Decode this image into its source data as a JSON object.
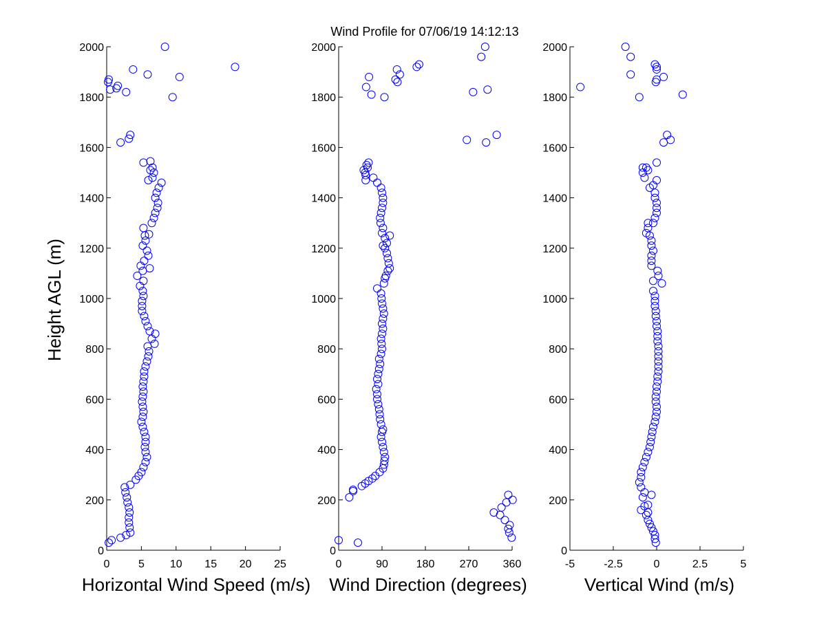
{
  "title": "Wind Profile for  07/06/19 14:12:13",
  "ylabel": "Height AGL (m)",
  "colors": {
    "marker": "#0000ff",
    "axis": "#000000",
    "background": "#ffffff"
  },
  "chart_data": [
    {
      "type": "scatter",
      "xlabel": "Horizontal Wind Speed (m/s)",
      "ylabel": "Height AGL (m)",
      "xlim": [
        0,
        25
      ],
      "ylim": [
        0,
        2000
      ],
      "xticks": [
        0,
        5,
        10,
        15,
        20,
        25
      ],
      "xtick_labels": [
        "0",
        "5",
        "10",
        "15",
        "20",
        "25"
      ],
      "yticks": [
        0,
        200,
        400,
        600,
        800,
        1000,
        1200,
        1400,
        1600,
        1800,
        2000
      ],
      "ytick_labels": [
        "0",
        "200",
        "400",
        "600",
        "800",
        "1000",
        "1200",
        "1400",
        "1600",
        "1800",
        "2000"
      ],
      "grid": false,
      "marker": "open-circle",
      "points": [
        [
          0.3,
          30
        ],
        [
          0.7,
          40
        ],
        [
          2.0,
          50
        ],
        [
          2.8,
          60
        ],
        [
          3.4,
          70
        ],
        [
          3.3,
          90
        ],
        [
          3.2,
          110
        ],
        [
          3.2,
          130
        ],
        [
          3.3,
          150
        ],
        [
          3.2,
          170
        ],
        [
          3.0,
          190
        ],
        [
          2.9,
          210
        ],
        [
          2.7,
          230
        ],
        [
          3.4,
          260
        ],
        [
          2.6,
          250
        ],
        [
          4.2,
          280
        ],
        [
          4.6,
          295
        ],
        [
          5.0,
          310
        ],
        [
          5.3,
          330
        ],
        [
          5.6,
          350
        ],
        [
          5.8,
          370
        ],
        [
          5.6,
          390
        ],
        [
          5.5,
          410
        ],
        [
          5.6,
          430
        ],
        [
          5.6,
          450
        ],
        [
          5.4,
          470
        ],
        [
          5.2,
          490
        ],
        [
          5.0,
          510
        ],
        [
          5.2,
          530
        ],
        [
          5.3,
          550
        ],
        [
          5.2,
          570
        ],
        [
          5.1,
          590
        ],
        [
          5.2,
          610
        ],
        [
          5.3,
          630
        ],
        [
          5.2,
          650
        ],
        [
          5.3,
          670
        ],
        [
          5.4,
          690
        ],
        [
          5.4,
          710
        ],
        [
          5.6,
          730
        ],
        [
          5.8,
          750
        ],
        [
          6.0,
          770
        ],
        [
          6.1,
          790
        ],
        [
          5.9,
          810
        ],
        [
          6.9,
          820
        ],
        [
          6.5,
          840
        ],
        [
          7.0,
          860
        ],
        [
          6.2,
          870
        ],
        [
          5.9,
          890
        ],
        [
          5.6,
          910
        ],
        [
          5.4,
          930
        ],
        [
          5.1,
          950
        ],
        [
          5.1,
          970
        ],
        [
          5.1,
          990
        ],
        [
          5.3,
          1010
        ],
        [
          5.2,
          1030
        ],
        [
          4.8,
          1050
        ],
        [
          5.3,
          1070
        ],
        [
          4.4,
          1090
        ],
        [
          5.2,
          1110
        ],
        [
          6.2,
          1120
        ],
        [
          4.9,
          1130
        ],
        [
          5.4,
          1150
        ],
        [
          6.0,
          1170
        ],
        [
          5.8,
          1190
        ],
        [
          5.2,
          1210
        ],
        [
          5.6,
          1230
        ],
        [
          5.5,
          1250
        ],
        [
          6.1,
          1255
        ],
        [
          5.3,
          1280
        ],
        [
          6.5,
          1300
        ],
        [
          6.8,
          1320
        ],
        [
          7.0,
          1340
        ],
        [
          7.3,
          1360
        ],
        [
          7.4,
          1380
        ],
        [
          7.0,
          1400
        ],
        [
          7.2,
          1420
        ],
        [
          7.5,
          1440
        ],
        [
          7.9,
          1460
        ],
        [
          6.0,
          1470
        ],
        [
          6.6,
          1480
        ],
        [
          6.8,
          1500
        ],
        [
          6.3,
          1510
        ],
        [
          6.6,
          1520
        ],
        [
          5.3,
          1540
        ],
        [
          6.3,
          1545
        ],
        [
          2.0,
          1620
        ],
        [
          3.2,
          1635
        ],
        [
          3.4,
          1650
        ],
        [
          9.5,
          1800
        ],
        [
          2.8,
          1820
        ],
        [
          1.4,
          1835
        ],
        [
          0.5,
          1830
        ],
        [
          1.6,
          1845
        ],
        [
          0.2,
          1860
        ],
        [
          0.3,
          1870
        ],
        [
          10.5,
          1880
        ],
        [
          5.9,
          1890
        ],
        [
          3.8,
          1910
        ],
        [
          18.5,
          1920
        ],
        [
          8.4,
          2000
        ]
      ]
    },
    {
      "type": "scatter",
      "xlabel": "Wind Direction (degrees)",
      "ylabel": "",
      "xlim": [
        0,
        360
      ],
      "ylim": [
        0,
        2000
      ],
      "xticks": [
        0,
        90,
        180,
        270,
        360
      ],
      "xtick_labels": [
        "0",
        "90",
        "180",
        "270",
        "360"
      ],
      "yticks": [
        0,
        200,
        400,
        600,
        800,
        1000,
        1200,
        1400,
        1600,
        1800,
        2000
      ],
      "ytick_labels": [
        "0",
        "200",
        "400",
        "600",
        "800",
        "1000",
        "1200",
        "1400",
        "1600",
        "1800",
        "2000"
      ],
      "grid": false,
      "marker": "open-circle",
      "points": [
        [
          0,
          40
        ],
        [
          40,
          30
        ],
        [
          359,
          50
        ],
        [
          354,
          70
        ],
        [
          352,
          85
        ],
        [
          355,
          100
        ],
        [
          345,
          120
        ],
        [
          335,
          140
        ],
        [
          322,
          150
        ],
        [
          338,
          170
        ],
        [
          348,
          190
        ],
        [
          361,
          200
        ],
        [
          352,
          220
        ],
        [
          22,
          210
        ],
        [
          30,
          240
        ],
        [
          30,
          235
        ],
        [
          48,
          255
        ],
        [
          55,
          265
        ],
        [
          62,
          275
        ],
        [
          70,
          285
        ],
        [
          76,
          295
        ],
        [
          85,
          310
        ],
        [
          92,
          325
        ],
        [
          94,
          340
        ],
        [
          95,
          355
        ],
        [
          96,
          370
        ],
        [
          94,
          390
        ],
        [
          92,
          410
        ],
        [
          90,
          430
        ],
        [
          88,
          450
        ],
        [
          90,
          470
        ],
        [
          92,
          480
        ],
        [
          88,
          500
        ],
        [
          86,
          520
        ],
        [
          85,
          540
        ],
        [
          84,
          560
        ],
        [
          82,
          580
        ],
        [
          80,
          600
        ],
        [
          80,
          620
        ],
        [
          78,
          640
        ],
        [
          82,
          660
        ],
        [
          80,
          680
        ],
        [
          82,
          700
        ],
        [
          84,
          720
        ],
        [
          86,
          740
        ],
        [
          84,
          760
        ],
        [
          88,
          780
        ],
        [
          90,
          800
        ],
        [
          89,
          820
        ],
        [
          88,
          840
        ],
        [
          90,
          860
        ],
        [
          92,
          880
        ],
        [
          90,
          900
        ],
        [
          92,
          920
        ],
        [
          94,
          940
        ],
        [
          92,
          960
        ],
        [
          90,
          980
        ],
        [
          89,
          1000
        ],
        [
          88,
          1020
        ],
        [
          80,
          1040
        ],
        [
          94,
          1060
        ],
        [
          96,
          1080
        ],
        [
          98,
          1090
        ],
        [
          102,
          1110
        ],
        [
          106,
          1120
        ],
        [
          104,
          1140
        ],
        [
          102,
          1160
        ],
        [
          100,
          1180
        ],
        [
          96,
          1200
        ],
        [
          92,
          1210
        ],
        [
          100,
          1220
        ],
        [
          96,
          1240
        ],
        [
          106,
          1250
        ],
        [
          90,
          1260
        ],
        [
          92,
          1280
        ],
        [
          87,
          1300
        ],
        [
          86,
          1320
        ],
        [
          88,
          1340
        ],
        [
          90,
          1360
        ],
        [
          92,
          1380
        ],
        [
          92,
          1400
        ],
        [
          90,
          1420
        ],
        [
          88,
          1440
        ],
        [
          80,
          1460
        ],
        [
          72,
          1480
        ],
        [
          56,
          1490
        ],
        [
          52,
          1510
        ],
        [
          55,
          1500
        ],
        [
          60,
          1520
        ],
        [
          58,
          1530
        ],
        [
          62,
          1540
        ],
        [
          56,
          1470
        ],
        [
          266,
          1630
        ],
        [
          328,
          1650
        ],
        [
          306,
          1620
        ],
        [
          95,
          1800
        ],
        [
          68,
          1810
        ],
        [
          57,
          1840
        ],
        [
          279,
          1820
        ],
        [
          309,
          1830
        ],
        [
          63,
          1880
        ],
        [
          118,
          1870
        ],
        [
          122,
          1860
        ],
        [
          127,
          1890
        ],
        [
          121,
          1910
        ],
        [
          162,
          1920
        ],
        [
          167,
          1930
        ],
        [
          296,
          1960
        ],
        [
          304,
          2000
        ]
      ]
    },
    {
      "type": "scatter",
      "xlabel": "Vertical Wind (m/s)",
      "ylabel": "",
      "xlim": [
        -5,
        5
      ],
      "ylim": [
        0,
        2000
      ],
      "xticks": [
        -5,
        -2.5,
        0,
        2.5,
        5
      ],
      "xtick_labels": [
        "-5",
        "-2.5",
        "0",
        "2.5",
        "5"
      ],
      "yticks": [
        0,
        200,
        400,
        600,
        800,
        1000,
        1200,
        1400,
        1600,
        1800,
        2000
      ],
      "ytick_labels": [
        "0",
        "200",
        "400",
        "600",
        "800",
        "1000",
        "1200",
        "1400",
        "1600",
        "1800",
        "2000"
      ],
      "grid": false,
      "marker": "open-circle",
      "points": [
        [
          -0.05,
          30
        ],
        [
          -0.1,
          45
        ],
        [
          -0.1,
          60
        ],
        [
          -0.2,
          75
        ],
        [
          -0.3,
          90
        ],
        [
          -0.4,
          105
        ],
        [
          -0.5,
          120
        ],
        [
          -0.6,
          140
        ],
        [
          -0.5,
          150
        ],
        [
          -0.9,
          160
        ],
        [
          -0.7,
          175
        ],
        [
          -0.5,
          180
        ],
        [
          -0.3,
          220
        ],
        [
          -0.8,
          210
        ],
        [
          -0.7,
          230
        ],
        [
          -0.9,
          250
        ],
        [
          -1.0,
          270
        ],
        [
          -0.9,
          290
        ],
        [
          -0.9,
          310
        ],
        [
          -0.8,
          330
        ],
        [
          -0.7,
          350
        ],
        [
          -0.6,
          370
        ],
        [
          -0.5,
          390
        ],
        [
          -0.4,
          410
        ],
        [
          -0.35,
          430
        ],
        [
          -0.3,
          450
        ],
        [
          -0.25,
          470
        ],
        [
          -0.2,
          490
        ],
        [
          -0.1,
          510
        ],
        [
          -0.05,
          530
        ],
        [
          0.0,
          550
        ],
        [
          0.0,
          570
        ],
        [
          -0.05,
          590
        ],
        [
          -0.05,
          610
        ],
        [
          0.0,
          630
        ],
        [
          0.0,
          650
        ],
        [
          0.05,
          670
        ],
        [
          0.05,
          690
        ],
        [
          0.1,
          710
        ],
        [
          0.1,
          730
        ],
        [
          0.1,
          750
        ],
        [
          0.1,
          770
        ],
        [
          0.1,
          790
        ],
        [
          0.1,
          810
        ],
        [
          0.05,
          830
        ],
        [
          0.05,
          850
        ],
        [
          0.05,
          870
        ],
        [
          0.0,
          890
        ],
        [
          0.0,
          910
        ],
        [
          -0.05,
          930
        ],
        [
          -0.05,
          950
        ],
        [
          -0.1,
          970
        ],
        [
          -0.1,
          990
        ],
        [
          -0.1,
          1010
        ],
        [
          -0.2,
          1030
        ],
        [
          0.3,
          1060
        ],
        [
          -0.2,
          1070
        ],
        [
          0.1,
          1090
        ],
        [
          0.05,
          1110
        ],
        [
          -0.3,
          1130
        ],
        [
          -0.3,
          1150
        ],
        [
          -0.3,
          1170
        ],
        [
          -0.2,
          1190
        ],
        [
          -0.3,
          1210
        ],
        [
          -0.3,
          1230
        ],
        [
          -0.4,
          1250
        ],
        [
          -0.6,
          1260
        ],
        [
          -0.5,
          1280
        ],
        [
          -0.2,
          1300
        ],
        [
          -0.5,
          1300
        ],
        [
          -0.1,
          1320
        ],
        [
          0.0,
          1340
        ],
        [
          0.0,
          1360
        ],
        [
          0.0,
          1380
        ],
        [
          -0.1,
          1400
        ],
        [
          -0.1,
          1420
        ],
        [
          -0.4,
          1440
        ],
        [
          -0.2,
          1450
        ],
        [
          0.0,
          1470
        ],
        [
          -0.7,
          1480
        ],
        [
          -0.8,
          1500
        ],
        [
          -0.5,
          1510
        ],
        [
          -0.8,
          1520
        ],
        [
          -0.6,
          1520
        ],
        [
          0.0,
          1540
        ],
        [
          0.4,
          1620
        ],
        [
          0.6,
          1650
        ],
        [
          0.8,
          1630
        ],
        [
          -4.4,
          1840
        ],
        [
          -1.0,
          1800
        ],
        [
          1.5,
          1810
        ],
        [
          -0.05,
          1860
        ],
        [
          0.0,
          1870
        ],
        [
          0.4,
          1880
        ],
        [
          -1.5,
          1890
        ],
        [
          0.0,
          1910
        ],
        [
          0.0,
          1920
        ],
        [
          -0.1,
          1930
        ],
        [
          -1.5,
          1960
        ],
        [
          -1.8,
          2000
        ]
      ]
    }
  ]
}
